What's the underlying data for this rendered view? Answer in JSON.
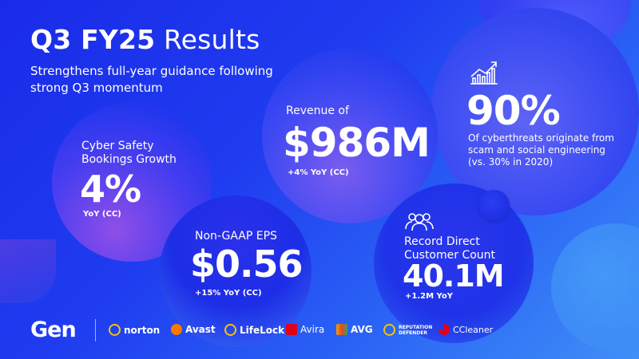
{
  "title": {
    "bold": "Q3 FY25",
    "rest": " Results"
  },
  "subtitle": "Strengthens full-year guidance following strong Q3 momentum",
  "bookings": {
    "label": "Cyber Safety Bookings Growth",
    "value": "4%",
    "note": "YoY (CC)"
  },
  "revenue": {
    "label": "Revenue of",
    "value": "$986M",
    "note": "+4% YoY (CC)"
  },
  "cyberthreats": {
    "value": "90%",
    "description": "Of cyberthreats originate from scam and social engineering (vs. 30% in 2020)",
    "icon": "growth-chart-icon"
  },
  "eps": {
    "label": "Non-GAAP EPS",
    "value": "$0.56",
    "note": "+15% YoY (CC)"
  },
  "customers": {
    "label": "Record Direct Customer Count",
    "value": "40.1M",
    "note": "+1.2M YoY",
    "icon": "people-group-icon"
  },
  "footer": {
    "company": "Gen",
    "brands": [
      "norton",
      "Avast",
      "LifeLock",
      "Avira",
      "AVG",
      "REPUTATION DEFENDER",
      "CCleaner"
    ]
  },
  "colors": {
    "background": "#1f3cf0",
    "text": "#ffffff",
    "accent_light": "#3f8ff7"
  }
}
